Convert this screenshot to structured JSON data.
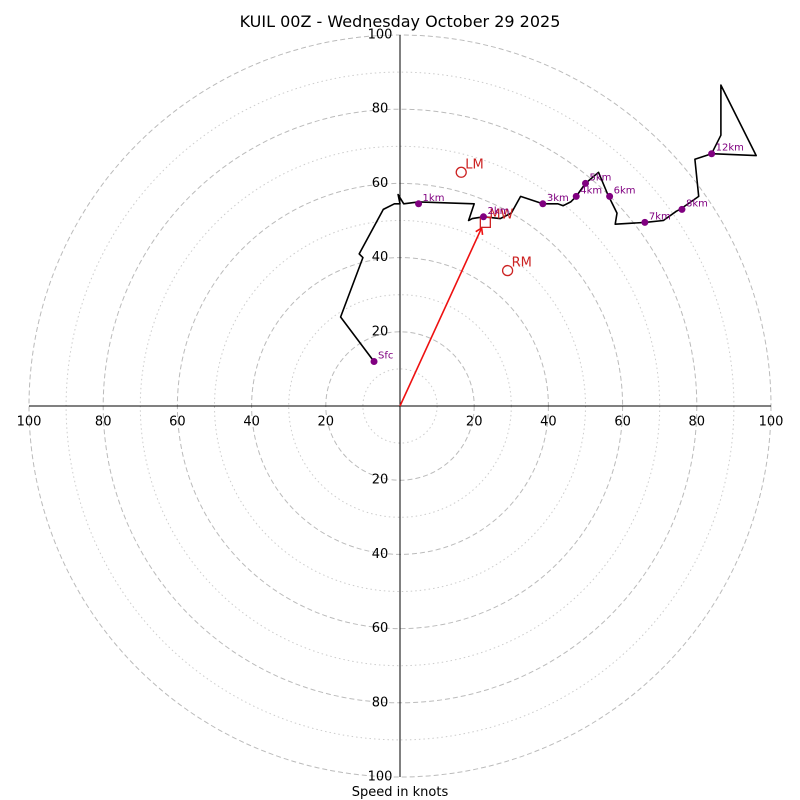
{
  "chart_data": {
    "type": "hodograph",
    "title": "KUIL 00Z - Wednesday October 29 2025",
    "xlabel": "Speed in knots",
    "range": [
      -100,
      100
    ],
    "rings_major": [
      20,
      40,
      60,
      80,
      100
    ],
    "rings_minor": [
      10,
      30,
      50,
      70,
      90
    ],
    "tick_labels": {
      "x_neg": [
        "100",
        "80",
        "60",
        "40",
        "20"
      ],
      "x_pos": [
        "20",
        "40",
        "60",
        "80",
        "100"
      ],
      "y_pos": [
        "20",
        "40",
        "60",
        "80",
        "100"
      ],
      "y_neg": [
        "20",
        "40",
        "60",
        "80",
        "100"
      ]
    },
    "trace": [
      [
        -7,
        12
      ],
      [
        -16,
        24
      ],
      [
        -10,
        40
      ],
      [
        -11,
        41
      ],
      [
        -4.5,
        53
      ],
      [
        -1.5,
        54.5
      ],
      [
        0,
        54.5
      ],
      [
        -0.5,
        57
      ],
      [
        1,
        54.5
      ],
      [
        5,
        55
      ],
      [
        20,
        54.5
      ],
      [
        18.5,
        50
      ],
      [
        19.5,
        50.5
      ],
      [
        22.5,
        51
      ],
      [
        27,
        50.5
      ],
      [
        30,
        52
      ],
      [
        32.5,
        56.5
      ],
      [
        38.5,
        54.5
      ],
      [
        42.5,
        54.5
      ],
      [
        44,
        54
      ],
      [
        46,
        55
      ],
      [
        47.5,
        56.5
      ],
      [
        50,
        60
      ],
      [
        53.5,
        63
      ],
      [
        56,
        57
      ],
      [
        58.5,
        52
      ],
      [
        58,
        49
      ],
      [
        66,
        49.5
      ],
      [
        71,
        50
      ],
      [
        74.5,
        52.5
      ],
      [
        75.5,
        53
      ],
      [
        80.5,
        56.5
      ],
      [
        79.5,
        66.5
      ],
      [
        84,
        68
      ],
      [
        86.5,
        73
      ],
      [
        86.5,
        86.5
      ],
      [
        96,
        67.5
      ],
      [
        84,
        68
      ]
    ],
    "height_markers": [
      {
        "label": "Sfc",
        "u": -7,
        "v": 12
      },
      {
        "label": "1km",
        "u": 5,
        "v": 54.5
      },
      {
        "label": "2km",
        "u": 22.5,
        "v": 51
      },
      {
        "label": "3km",
        "u": 38.5,
        "v": 54.5
      },
      {
        "label": "4km",
        "u": 47.5,
        "v": 56.5
      },
      {
        "label": "5km",
        "u": 50,
        "v": 60
      },
      {
        "label": "6km",
        "u": 56.5,
        "v": 56.5
      },
      {
        "label": "7km",
        "u": 66,
        "v": 49.5
      },
      {
        "label": "8km",
        "u": 76,
        "v": 53
      },
      {
        "label": "12km",
        "u": 84,
        "v": 68
      }
    ],
    "storm_motion": [
      {
        "label": "LM",
        "u": 16.5,
        "v": 63,
        "marker": "circle"
      },
      {
        "label": "RM",
        "u": 29,
        "v": 36.5,
        "marker": "circle"
      },
      {
        "label": "MW",
        "u": 23,
        "v": 49.5,
        "marker": "square"
      }
    ],
    "shear_vector": {
      "from": [
        0,
        0
      ],
      "to": [
        22,
        48
      ]
    },
    "colors": {
      "trace": "#000000",
      "height_marker": "#800080",
      "storm_motion": "#cc2222",
      "shear_vector": "#ee1111",
      "ring": "#bbbbbb",
      "axis": "#000000"
    }
  }
}
